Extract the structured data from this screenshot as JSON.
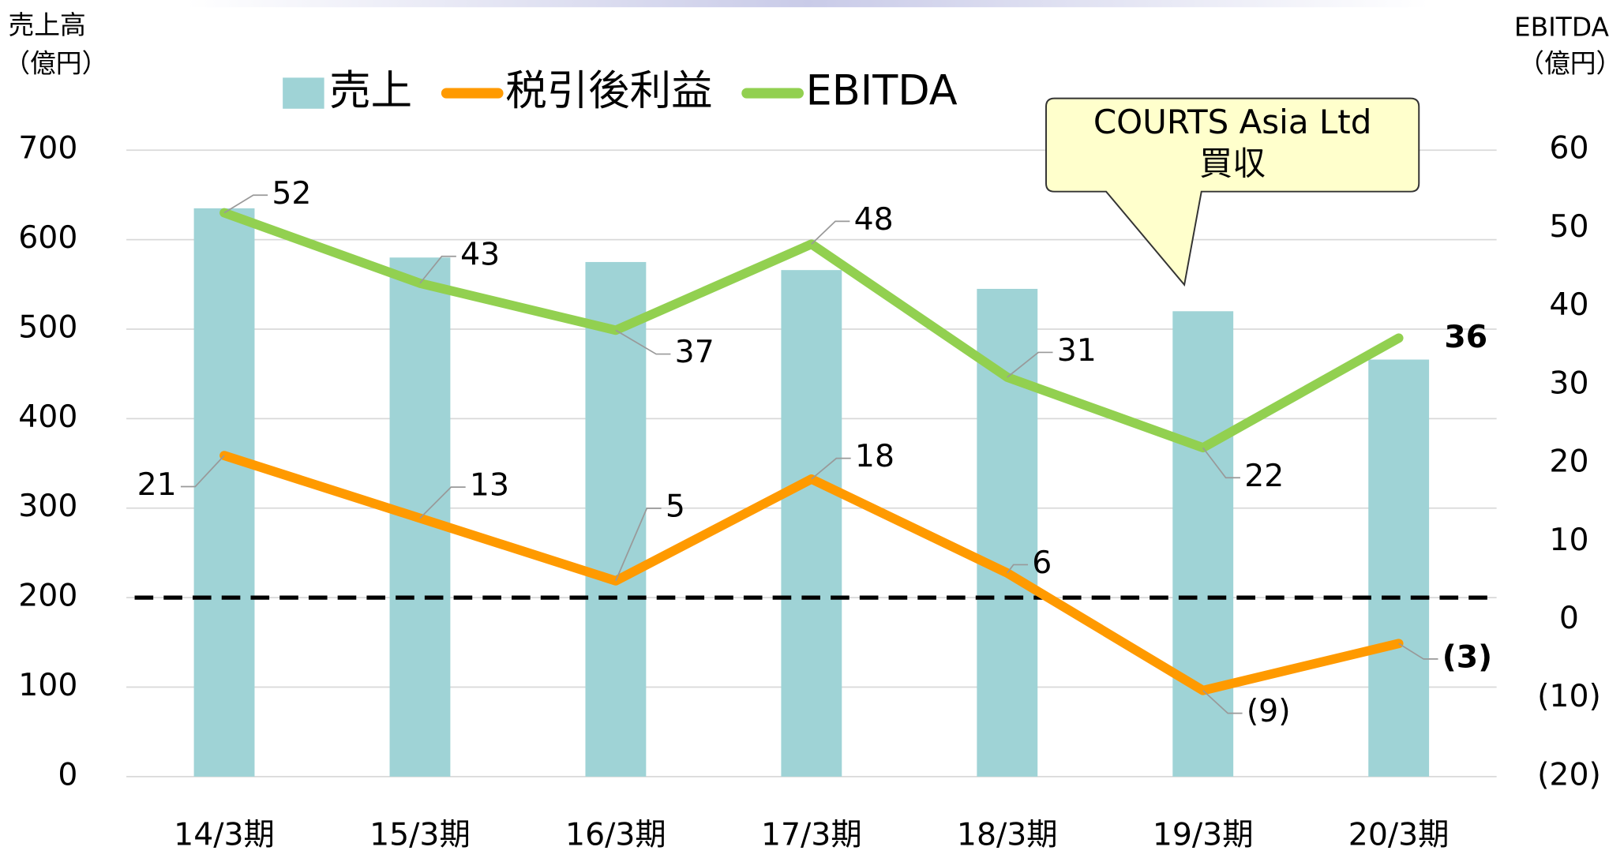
{
  "chart_data": {
    "type": "bar_line",
    "ylabel": [
      "売上高",
      "（億円）"
    ],
    "y2label": [
      "EBITDA",
      "（億円）"
    ],
    "categories": [
      "14/3期",
      "15/3期",
      "16/3期",
      "17/3期",
      "18/3期",
      "19/3期",
      "20/3期"
    ],
    "series": [
      {
        "name": "売上",
        "type": "bar",
        "color": "#9fd3d6",
        "values": [
          635,
          580,
          575,
          566,
          545,
          520,
          466
        ]
      },
      {
        "name": "税引後利益",
        "type": "line",
        "axis": "y2",
        "color": "#ff9a00",
        "values": [
          21,
          13,
          5,
          18,
          6,
          -9,
          -3
        ],
        "value_labels": [
          "21",
          "13",
          "5",
          "18",
          "6",
          "(9)",
          "(3)"
        ]
      },
      {
        "name": "EBITDA",
        "type": "line",
        "axis": "y2",
        "color": "#92d050",
        "values": [
          52,
          43,
          37,
          48,
          31,
          22,
          36
        ]
      }
    ],
    "ylim": [
      0,
      700
    ],
    "yticks": [
      0,
      100,
      200,
      300,
      400,
      500,
      600,
      700
    ],
    "y2lim": [
      -20,
      60
    ],
    "y2ticks": [
      {
        "value": -20,
        "label": "(20)"
      },
      {
        "value": -10,
        "label": "(10)"
      },
      0,
      10,
      20,
      30,
      40,
      50,
      60
    ],
    "reference_line": 200,
    "grid": true,
    "legend": "top",
    "annotation": [
      "COURTS Asia Ltd",
      "買収"
    ]
  }
}
